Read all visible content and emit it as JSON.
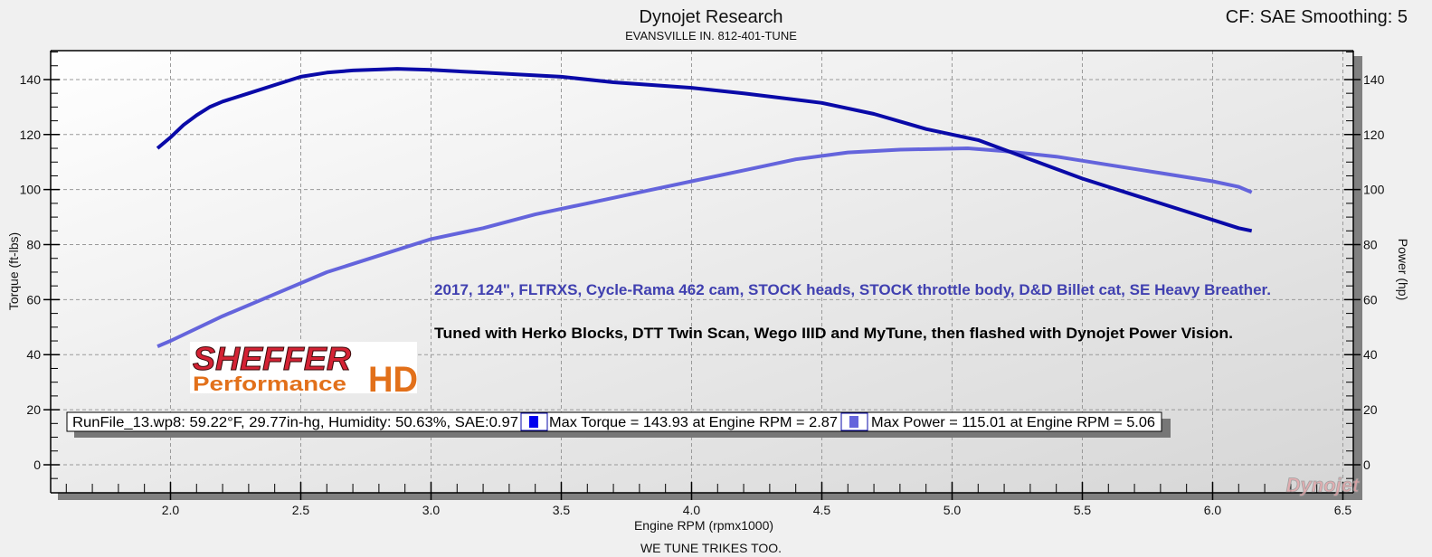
{
  "header": {
    "title": "Dynojet Research",
    "subtitle": "EVANSVILLE IN. 812-401-TUNE",
    "correction": "CF: SAE Smoothing: 5"
  },
  "footer": "WE TUNE TRIKES TOO.",
  "annotations": {
    "build": "2017, 124\", FLTRXS, Cycle-Rama 462 cam, STOCK heads, STOCK throttle body, D&D Billet cat, SE Heavy Breather.",
    "tune": "Tuned with Herko Blocks, DTT Twin Scan, Wego IIID and MyTune, then flashed with Dynojet Power Vision."
  },
  "logo": {
    "line1": "SHEFFER",
    "line2": "Performance",
    "mark": "HD"
  },
  "watermark": "Dynojet",
  "legend": {
    "run_info": "RunFile_13.wp8: 59.22°F, 29.77in-hg, Humidity: 50.63%, SAE:0.97",
    "torque_label": "Max Torque = 143.93 at Engine RPM = 2.87",
    "power_label": "Max Power = 115.01 at Engine RPM = 5.06"
  },
  "colors": {
    "torque": "#0a0aa8",
    "power": "#6464dc",
    "build_text": "#4040b0",
    "logo_red": "#d42234",
    "logo_orange": "#e2701a"
  },
  "chart_data": {
    "type": "line",
    "title": "Dynojet Research",
    "xlabel": "Engine RPM (rpmx1000)",
    "ylabel": "Torque (ft-lbs)",
    "y2label": "Power (hp)",
    "xlim": [
      1.54,
      6.54
    ],
    "ylim": [
      -10.2,
      150.5
    ],
    "grid": true,
    "x_ticks": [
      "2.0",
      "2.5",
      "3.0",
      "3.5",
      "4.0",
      "4.5",
      "5.0",
      "5.5",
      "6.0",
      "6.5"
    ],
    "y_ticks": [
      "0",
      "20",
      "40",
      "60",
      "80",
      "100",
      "120",
      "140"
    ],
    "series": [
      {
        "name": "Torque",
        "axis": "left",
        "x": [
          1.95,
          2.0,
          2.05,
          2.1,
          2.15,
          2.2,
          2.3,
          2.4,
          2.5,
          2.6,
          2.7,
          2.87,
          3.0,
          3.2,
          3.5,
          3.7,
          4.0,
          4.2,
          4.5,
          4.7,
          4.9,
          5.1,
          5.3,
          5.5,
          5.7,
          5.9,
          6.1,
          6.15
        ],
        "y": [
          115,
          119,
          123.5,
          127,
          130,
          132,
          135,
          138,
          141,
          142.5,
          143.3,
          143.9,
          143.5,
          142.5,
          141,
          139,
          137,
          135,
          131.5,
          127.5,
          122,
          118,
          111,
          104,
          98,
          92,
          86,
          85
        ]
      },
      {
        "name": "Power",
        "axis": "right",
        "x": [
          1.95,
          2.0,
          2.2,
          2.4,
          2.6,
          2.8,
          3.0,
          3.2,
          3.4,
          3.6,
          3.8,
          4.0,
          4.2,
          4.4,
          4.6,
          4.8,
          5.06,
          5.2,
          5.4,
          5.6,
          5.8,
          6.0,
          6.1,
          6.15
        ],
        "y": [
          43,
          45,
          54,
          62,
          70,
          76,
          82,
          86,
          91,
          95,
          99,
          103,
          107,
          111,
          113.5,
          114.5,
          115,
          114,
          112,
          109,
          106,
          103,
          101,
          99
        ]
      }
    ]
  }
}
